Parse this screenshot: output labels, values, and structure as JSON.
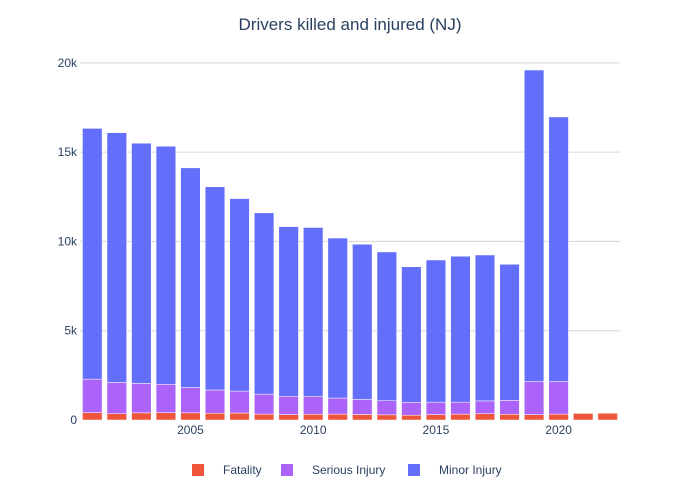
{
  "chart_data": {
    "type": "bar",
    "stacked": true,
    "title": "Drivers killed and injured (NJ)",
    "xlabel": "",
    "ylabel": "",
    "x": [
      2001,
      2002,
      2003,
      2004,
      2005,
      2006,
      2007,
      2008,
      2009,
      2010,
      2011,
      2012,
      2013,
      2014,
      2015,
      2016,
      2017,
      2018,
      2019,
      2020,
      2021,
      2022
    ],
    "xticks": [
      2005,
      2010,
      2015,
      2020
    ],
    "ylim": [
      0,
      21000
    ],
    "yticks": [
      0,
      5000,
      10000,
      15000,
      20000
    ],
    "ytick_labels": [
      "0",
      "5k",
      "10k",
      "15k",
      "20k"
    ],
    "grid": true,
    "legend_position": "bottom",
    "series": [
      {
        "name": "Fatality",
        "color": "#ef553b",
        "values": [
          410,
          350,
          400,
          410,
          400,
          380,
          390,
          330,
          300,
          320,
          330,
          310,
          290,
          270,
          300,
          330,
          350,
          320,
          300,
          330,
          370,
          380
        ]
      },
      {
        "name": "Serious Injury",
        "color": "#ab63fa",
        "values": [
          1880,
          1750,
          1650,
          1590,
          1420,
          1300,
          1230,
          1120,
          1030,
          990,
          900,
          840,
          790,
          720,
          700,
          670,
          720,
          780,
          1850,
          1820,
          0,
          0
        ]
      },
      {
        "name": "Minor Injury",
        "color": "#636efa",
        "values": [
          14040,
          13990,
          13450,
          13330,
          12300,
          11380,
          10780,
          10150,
          9500,
          9470,
          8960,
          8690,
          8330,
          7590,
          7960,
          8170,
          8170,
          7620,
          17450,
          14820,
          0,
          0
        ]
      }
    ]
  }
}
